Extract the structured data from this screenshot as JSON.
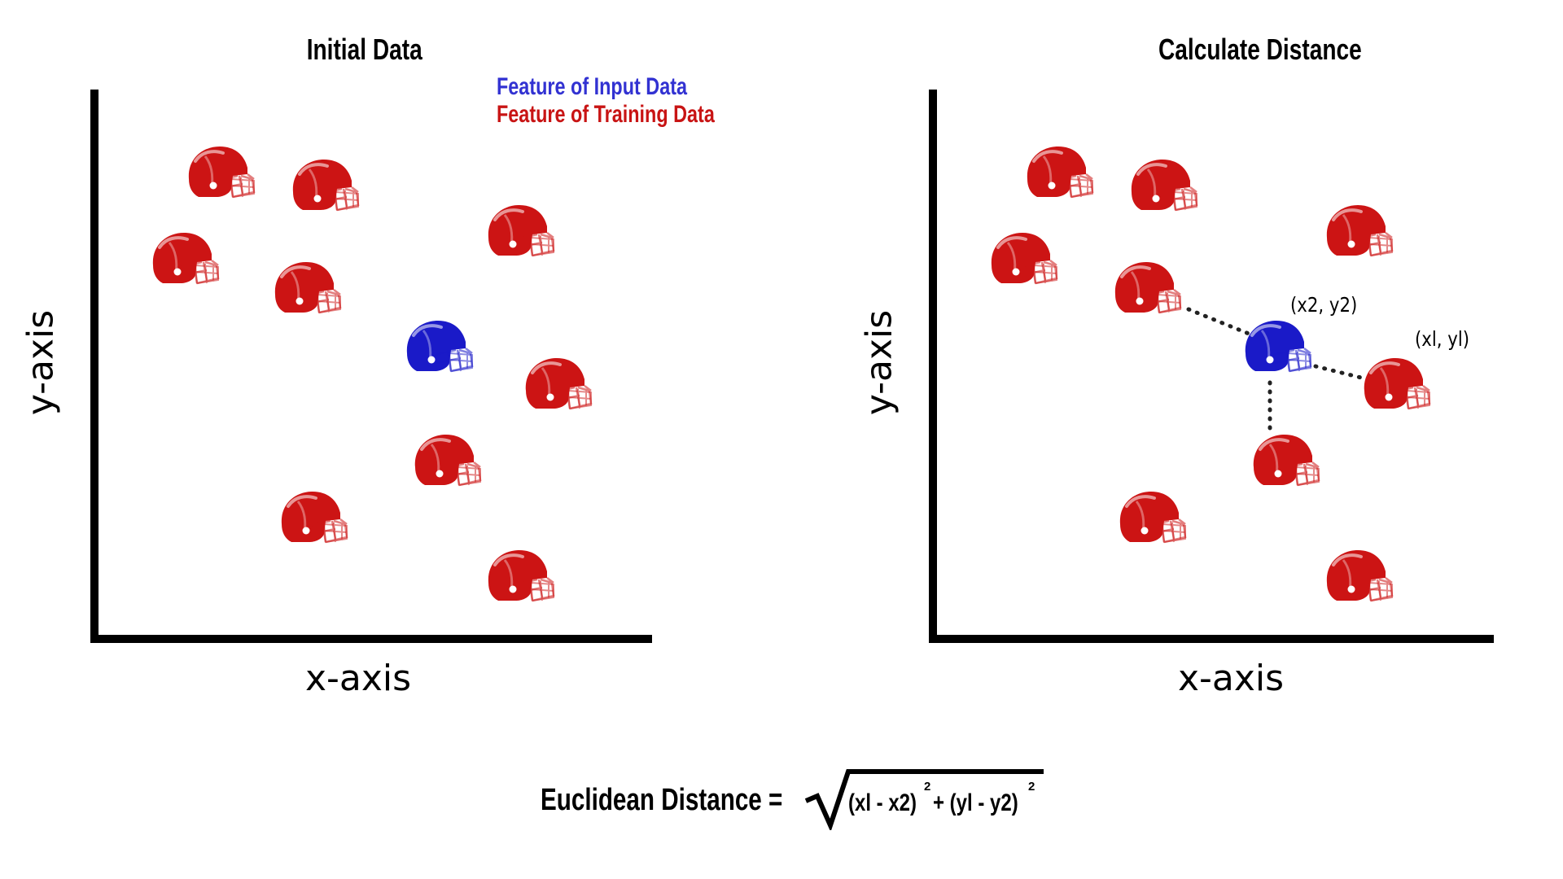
{
  "left_panel": {
    "title": "Initial Data",
    "legend": {
      "input": "Feature of Input Data",
      "training": "Feature of Training Data"
    },
    "x_label": "x-axis",
    "y_label": "y-axis"
  },
  "right_panel": {
    "title": "Calculate Distance",
    "x_label": "x-axis",
    "y_label": "y-axis",
    "label_input": "(x2, y2)",
    "label_neighbor": "(xl, yl)"
  },
  "formula": {
    "lhs": "Euclidean Distance =",
    "term1": "(xl - x2)",
    "exp1": "2",
    "plus": "+ (yl - y2)",
    "exp2": "2"
  },
  "colors": {
    "input": "#1a1ac8",
    "training": "#cc1414",
    "input_text": "#3232d2",
    "training_text": "#c81414"
  }
}
